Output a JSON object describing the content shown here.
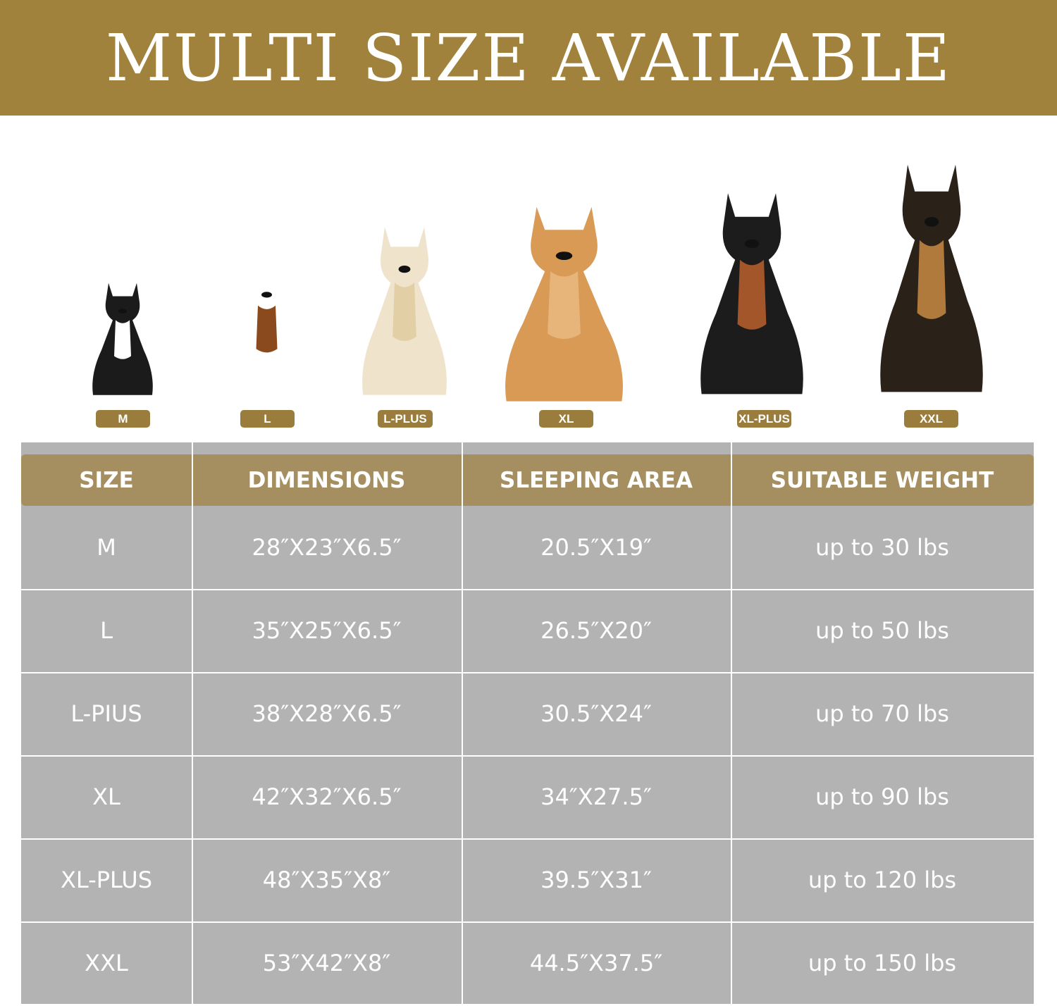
{
  "banner": {
    "title": "MULTI SIZE AVAILABLE"
  },
  "colors": {
    "banner": "#a0823c",
    "header": "#a58f60",
    "tag": "#9a7d3c",
    "table": "#b3b3b3"
  },
  "dogs": [
    {
      "label": "M",
      "icon": "french-bulldog-image"
    },
    {
      "label": "L",
      "icon": "beagle-image"
    },
    {
      "label": "L-PLUS",
      "icon": "golden-retriever-light-image"
    },
    {
      "label": "XL",
      "icon": "golden-retriever-image"
    },
    {
      "label": "XL-PLUS",
      "icon": "doberman-image"
    },
    {
      "label": "XXL",
      "icon": "german-shepherd-image"
    }
  ],
  "table": {
    "headers": [
      "SIZE",
      "DIMENSIONS",
      "SLEEPING AREA",
      "SUITABLE WEIGHT"
    ],
    "rows": [
      [
        "M",
        "28″X23″X6.5″",
        "20.5″X19″",
        "up to 30 lbs"
      ],
      [
        "L",
        "35″X25″X6.5″",
        "26.5″X20″",
        "up to 50 lbs"
      ],
      [
        "L-PIUS",
        "38″X28″X6.5″",
        "30.5″X24″",
        "up to 70 lbs"
      ],
      [
        "XL",
        "42″X32″X6.5″",
        "34″X27.5″",
        "up to 90 lbs"
      ],
      [
        "XL-PLUS",
        "48″X35″X8″",
        "39.5″X31″",
        "up to 120 lbs"
      ],
      [
        "XXL",
        "53″X42″X8″",
        "44.5″X37.5″",
        "up to 150 lbs"
      ]
    ]
  }
}
